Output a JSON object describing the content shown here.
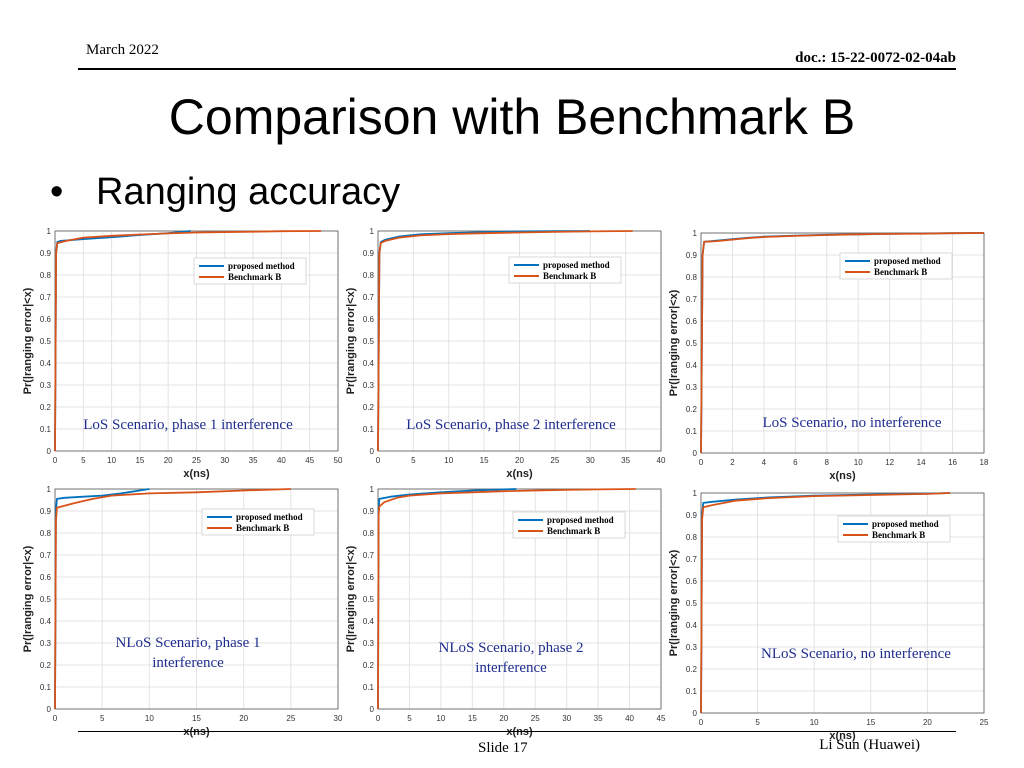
{
  "header": {
    "date": "March 2022",
    "doc": "doc.: 15-22-0072-02-04ab"
  },
  "title": "Comparison with Benchmark B",
  "bullet": {
    "symbol": "•",
    "text": "Ranging accuracy"
  },
  "footer": {
    "slide": "Slide 17",
    "author": "Li Sun (Huawei)"
  },
  "colors": {
    "proposed": "#0072BD",
    "benchmark": "#D95319",
    "grid": "#e3e3e3",
    "axis": "#555555",
    "annotation": "#1f2d8f"
  },
  "chart_data": [
    {
      "type": "line",
      "ylabel": "Pr(|ranging error|<x)",
      "xlabel": "x(ns)",
      "xlim": [
        0,
        50
      ],
      "ylim": [
        0,
        1
      ],
      "xticks": [
        "0",
        "5",
        "10",
        "15",
        "20",
        "25",
        "30",
        "35",
        "40",
        "45",
        "50"
      ],
      "yticks": [
        "0",
        "0.1",
        "0.2",
        "0.3",
        "0.4",
        "0.5",
        "0.6",
        "0.7",
        "0.8",
        "0.9",
        "1"
      ],
      "legend": [
        "proposed method",
        "Benchmark B"
      ],
      "legend_position": "top-right",
      "annotation": "LoS Scenario, phase 1 interference",
      "series": [
        {
          "name": "proposed method",
          "x": [
            0,
            0.2,
            0.4,
            1,
            5,
            10,
            15,
            20,
            24
          ],
          "y": [
            0,
            0.9,
            0.95,
            0.955,
            0.963,
            0.972,
            0.982,
            0.99,
            1
          ]
        },
        {
          "name": "Benchmark B",
          "x": [
            0,
            0.2,
            0.4,
            2,
            5,
            10,
            15,
            20,
            25,
            30,
            35,
            40,
            47
          ],
          "y": [
            0,
            0.9,
            0.945,
            0.955,
            0.97,
            0.978,
            0.984,
            0.989,
            0.993,
            0.995,
            0.997,
            0.999,
            1
          ]
        }
      ]
    },
    {
      "type": "line",
      "ylabel": "Pr(|ranging error|<x)",
      "xlabel": "x(ns)",
      "xlim": [
        0,
        40
      ],
      "ylim": [
        0,
        1
      ],
      "xticks": [
        "0",
        "5",
        "10",
        "15",
        "20",
        "25",
        "30",
        "35",
        "40"
      ],
      "yticks": [
        "0",
        "0.1",
        "0.2",
        "0.3",
        "0.4",
        "0.5",
        "0.6",
        "0.7",
        "0.8",
        "0.9",
        "1"
      ],
      "legend": [
        "proposed method",
        "Benchmark B"
      ],
      "legend_position": "top-right",
      "annotation": "LoS Scenario, phase 2 interference",
      "series": [
        {
          "name": "proposed method",
          "x": [
            0,
            0.2,
            0.4,
            1,
            3,
            6,
            10,
            15,
            20,
            25,
            30
          ],
          "y": [
            0,
            0.9,
            0.95,
            0.96,
            0.975,
            0.985,
            0.99,
            0.995,
            0.998,
            0.999,
            1
          ]
        },
        {
          "name": "Benchmark B",
          "x": [
            0,
            0.2,
            0.4,
            1,
            3,
            6,
            10,
            15,
            20,
            25,
            30,
            36
          ],
          "y": [
            0,
            0.9,
            0.945,
            0.955,
            0.97,
            0.98,
            0.986,
            0.99,
            0.993,
            0.996,
            0.998,
            1
          ]
        }
      ]
    },
    {
      "type": "line",
      "ylabel": "Pr(|ranging error|<x)",
      "xlabel": "x(ns)",
      "xlim": [
        0,
        18
      ],
      "ylim": [
        0,
        1
      ],
      "xticks": [
        "0",
        "2",
        "4",
        "6",
        "8",
        "10",
        "12",
        "14",
        "16",
        "18"
      ],
      "yticks": [
        "0",
        "0.1",
        "0.2",
        "0.3",
        "0.4",
        "0.5",
        "0.6",
        "0.7",
        "0.8",
        "0.9",
        "1"
      ],
      "legend": [
        "proposed method",
        "Benchmark B"
      ],
      "legend_position": "top-right",
      "annotation": "LoS Scenario, no interference",
      "series": [
        {
          "name": "proposed method",
          "x": [
            0,
            0.1,
            0.2,
            1,
            2,
            3,
            4,
            6,
            8,
            10,
            12,
            14,
            16,
            18
          ],
          "y": [
            0,
            0.9,
            0.96,
            0.965,
            0.972,
            0.978,
            0.983,
            0.988,
            0.992,
            0.994,
            0.996,
            0.998,
            0.999,
            1
          ]
        },
        {
          "name": "Benchmark B",
          "x": [
            0,
            0.1,
            0.2,
            1,
            2,
            3,
            4,
            6,
            8,
            10,
            12,
            14,
            16,
            18
          ],
          "y": [
            0,
            0.9,
            0.96,
            0.963,
            0.97,
            0.977,
            0.982,
            0.987,
            0.991,
            0.994,
            0.996,
            0.997,
            0.999,
            1
          ]
        }
      ]
    },
    {
      "type": "line",
      "ylabel": "Pr(|ranging error|<x)",
      "xlabel": "x(ns)",
      "xlim": [
        0,
        30
      ],
      "ylim": [
        0,
        1
      ],
      "xticks": [
        "0",
        "5",
        "10",
        "15",
        "20",
        "25",
        "30"
      ],
      "yticks": [
        "0",
        "0.1",
        "0.2",
        "0.3",
        "0.4",
        "0.5",
        "0.6",
        "0.7",
        "0.8",
        "0.9",
        "1"
      ],
      "legend": [
        "proposed method",
        "Benchmark B"
      ],
      "legend_position": "top-right",
      "annotation": "NLoS Scenario, phase 1 interference",
      "series": [
        {
          "name": "proposed method",
          "x": [
            0,
            0.1,
            0.2,
            1,
            3,
            5,
            7,
            10
          ],
          "y": [
            0,
            0.9,
            0.955,
            0.96,
            0.965,
            0.97,
            0.98,
            1
          ]
        },
        {
          "name": "Benchmark B",
          "x": [
            0,
            0.1,
            0.2,
            2,
            4,
            6,
            10,
            15,
            20,
            25
          ],
          "y": [
            0,
            0.85,
            0.915,
            0.935,
            0.955,
            0.97,
            0.98,
            0.985,
            0.993,
            1
          ]
        }
      ]
    },
    {
      "type": "line",
      "ylabel": "Pr(|ranging error|<x)",
      "xlabel": "x(ns)",
      "xlim": [
        0,
        45
      ],
      "ylim": [
        0,
        1
      ],
      "xticks": [
        "0",
        "5",
        "10",
        "15",
        "20",
        "25",
        "30",
        "35",
        "40",
        "45"
      ],
      "yticks": [
        "0",
        "0.1",
        "0.2",
        "0.3",
        "0.4",
        "0.5",
        "0.6",
        "0.7",
        "0.8",
        "0.9",
        "1"
      ],
      "legend": [
        "proposed method",
        "Benchmark B"
      ],
      "legend_position": "top-right",
      "annotation": "NLoS Scenario, phase 2 interference",
      "series": [
        {
          "name": "proposed method",
          "x": [
            0,
            0.1,
            0.2,
            2,
            5,
            10,
            15,
            20,
            22
          ],
          "y": [
            0,
            0.9,
            0.955,
            0.965,
            0.975,
            0.985,
            0.993,
            0.998,
            1
          ]
        },
        {
          "name": "Benchmark B",
          "x": [
            0,
            0.1,
            0.2,
            1,
            3,
            5,
            10,
            15,
            20,
            25,
            30,
            35,
            41
          ],
          "y": [
            0,
            0.88,
            0.92,
            0.94,
            0.96,
            0.97,
            0.98,
            0.985,
            0.99,
            0.993,
            0.996,
            0.998,
            1
          ]
        }
      ]
    },
    {
      "type": "line",
      "ylabel": "Pr(|ranging error|<x)",
      "xlabel": "x(ns)",
      "xlim": [
        0,
        25
      ],
      "ylim": [
        0,
        1
      ],
      "xticks": [
        "0",
        "5",
        "10",
        "15",
        "20",
        "25"
      ],
      "yticks": [
        "0",
        "0.1",
        "0.2",
        "0.3",
        "0.4",
        "0.5",
        "0.6",
        "0.7",
        "0.8",
        "0.9",
        "1"
      ],
      "legend": [
        "proposed method",
        "Benchmark B"
      ],
      "legend_position": "top-right",
      "annotation": "NLoS Scenario, no interference",
      "series": [
        {
          "name": "proposed method",
          "x": [
            0,
            0.1,
            0.2,
            1,
            3,
            6,
            10,
            15,
            20,
            22
          ],
          "y": [
            0,
            0.9,
            0.955,
            0.96,
            0.97,
            0.98,
            0.988,
            0.993,
            0.997,
            1
          ]
        },
        {
          "name": "Benchmark B",
          "x": [
            0,
            0.1,
            0.2,
            1,
            3,
            6,
            10,
            15,
            20,
            22
          ],
          "y": [
            0,
            0.88,
            0.935,
            0.945,
            0.965,
            0.977,
            0.986,
            0.991,
            0.996,
            1
          ]
        }
      ]
    }
  ]
}
